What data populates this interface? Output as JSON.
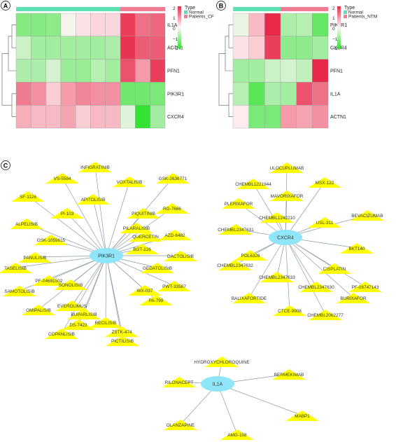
{
  "panels": {
    "a": {
      "label": "A",
      "columns": [
        "Normal",
        "Normal",
        "Normal",
        "Normal",
        "Normal",
        "Normal",
        "Normal",
        "Patients_CF",
        "Patients_CF",
        "Patients_CF"
      ],
      "rows": [
        "IL1A",
        "ACTN1",
        "PFN1",
        "PIK3R1",
        "CXCR4"
      ],
      "values": [
        [
          -1.2,
          -1.2,
          -1.1,
          -0.1,
          0.2,
          0.3,
          0.3,
          1.8,
          1.3,
          1.4
        ],
        [
          -0.5,
          -0.9,
          -0.9,
          -0.9,
          -0.9,
          -0.9,
          -0.8,
          1.9,
          1.5,
          1.5
        ],
        [
          -0.8,
          -0.8,
          -0.4,
          -1.0,
          -1.0,
          -0.7,
          -0.9,
          1.6,
          0.9,
          1.8
        ],
        [
          1.2,
          1.0,
          0.4,
          0.9,
          1.1,
          1.0,
          1.0,
          -1.4,
          -1.4,
          -1.3
        ],
        [
          0.7,
          0.6,
          0.6,
          0.8,
          0.4,
          0.6,
          0.6,
          -0.3,
          -2.0,
          -0.9
        ]
      ],
      "legend": {
        "type_title": "Type",
        "group_labels": [
          "Normal",
          "Patients_CF"
        ],
        "scale_ticks": [
          "2",
          "1",
          "0",
          "−1",
          "−2"
        ]
      }
    },
    "b": {
      "label": "B",
      "columns": [
        "Normal",
        "Normal",
        "Normal",
        "Patients_NTM",
        "Patients_NTM",
        "Patients_NTM"
      ],
      "rows": [
        "PIK3R1",
        "CXCR4",
        "PFN1",
        "IL1A",
        "ACTN1"
      ],
      "values": [
        [
          -0.2,
          0.6,
          2.0,
          -0.8,
          -0.7,
          -1.5
        ],
        [
          0.2,
          0.4,
          1.8,
          -1.1,
          -1.1,
          -0.9
        ],
        [
          -0.9,
          -0.9,
          -0.5,
          -0.4,
          -0.6,
          2.0
        ],
        [
          -0.7,
          -1.6,
          -0.8,
          -0.9,
          1.6,
          1.3
        ],
        [
          0.1,
          -1.3,
          -1.3,
          0.9,
          0.8,
          1.0
        ]
      ],
      "legend": {
        "type_title": "Type",
        "group_labels": [
          "Normal",
          "Patients_NTM"
        ],
        "scale_ticks": [
          "2",
          "1",
          "0",
          "−1",
          "−2"
        ]
      }
    },
    "c": {
      "label": "C"
    }
  },
  "colors": {
    "high": "#e8294a",
    "mid": "#fdf6f7",
    "low": "#33e233",
    "group_normal": "#5fe0b3",
    "group_patients": "#f07d95",
    "node_hub": "#8ee6f8",
    "node_drug": "#ffff00",
    "edge": "#8c9aa3"
  },
  "network": {
    "hubs": [
      "PIK3R1",
      "CXCR4",
      "IL1A"
    ],
    "drug_groups": {
      "PIK3R1": [
        "INFIGRATINIB",
        "VS-5584",
        "VOXTALISIB",
        "GSK-2636771",
        "SF-1126",
        "APITOLISIB",
        "PI-103",
        "PIQUITINIB",
        "RG-7666",
        "ALPELISIB",
        "PILARALISIB",
        "AZD-6482",
        "GSK-1059615",
        "QUERCETIN",
        "BGT-226",
        "PANULISIB",
        "DACTOLISIB",
        "TASELISIB",
        "GEDATOLISIB",
        "PF-04691502",
        "SONOLISIB",
        "PWT-33587",
        "SAMOTOLISIB",
        "WX-037",
        "EVEROLIMUS",
        "BUPARLISIB",
        "PA-799",
        "OMIPALISIB",
        "RECILISIB",
        "DS-7423",
        "ZSTK-474",
        "COPANLISIB",
        "PICTILISIB"
      ],
      "CXCR4": [
        "ULOCUPLUMAB",
        "CHEMBL1221944",
        "MSX-122",
        "MAVORIXAFOR",
        "PLERIXAFOR",
        "CHEMBL1242210",
        "BEVACIZUMAB",
        "CHEMBL2347631",
        "USL-311",
        "POL6326",
        "BKT140",
        "CHEMBL2347632",
        "CISPLATIN",
        "CHEMBL2347633",
        "PF-06747143",
        "CHEMBL2347630",
        "BALIXAFORTIDE",
        "BURIXAFOR",
        "CTCE-9908",
        "CHEMBL2062277"
      ],
      "IL1A": [
        "HYDROXYCHLOROQUINE",
        "BERMEKIMAB",
        "RILONACEPT",
        "MABP1",
        "OLANZAPINE",
        "AMG-108"
      ]
    }
  }
}
